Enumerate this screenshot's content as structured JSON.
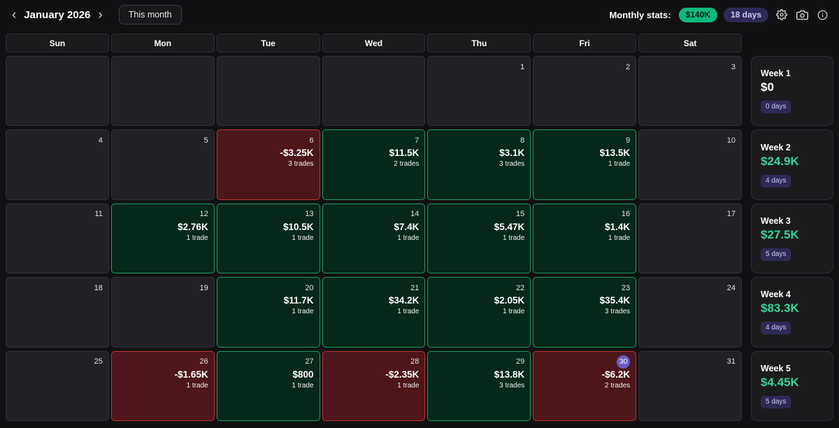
{
  "topbar": {
    "prev_icon": "‹",
    "next_icon": "›",
    "month_title": "January 2026",
    "this_month_label": "This month",
    "monthly_stats_label": "Monthly stats:",
    "monthly_pnl": "$140K",
    "monthly_days": "18 days"
  },
  "icons": {
    "prev": "chevron-left",
    "next": "chevron-right",
    "settings": "gear",
    "screenshot": "camera",
    "info": "info-circle"
  },
  "colors": {
    "win_bg": "#06281a",
    "win_border": "#1e9e5f",
    "loss_bg": "#4c161b",
    "loss_border": "#c23131",
    "positive_text": "#36d39b",
    "monthly_pnl_pill": "#10b981",
    "days_badge_bg": "#2e2a57",
    "today_badge": "#685bc7"
  },
  "calendar": {
    "weekday_headers": [
      "Sun",
      "Mon",
      "Tue",
      "Wed",
      "Thu",
      "Fri",
      "Sat"
    ],
    "days": [
      {
        "date": "",
        "state": "none"
      },
      {
        "date": "",
        "state": "none"
      },
      {
        "date": "",
        "state": "none"
      },
      {
        "date": "",
        "state": "none"
      },
      {
        "date": "1",
        "state": "none"
      },
      {
        "date": "2",
        "state": "none"
      },
      {
        "date": "3",
        "state": "none"
      },
      {
        "date": "4",
        "state": "none"
      },
      {
        "date": "5",
        "state": "none"
      },
      {
        "date": "6",
        "state": "loss",
        "pnl": "-$3.25K",
        "trades": "3 trades"
      },
      {
        "date": "7",
        "state": "win",
        "pnl": "$11.5K",
        "trades": "2 trades"
      },
      {
        "date": "8",
        "state": "win",
        "pnl": "$3.1K",
        "trades": "3 trades"
      },
      {
        "date": "9",
        "state": "win",
        "pnl": "$13.5K",
        "trades": "1 trade"
      },
      {
        "date": "10",
        "state": "none"
      },
      {
        "date": "11",
        "state": "none"
      },
      {
        "date": "12",
        "state": "win",
        "pnl": "$2.76K",
        "trades": "1 trade"
      },
      {
        "date": "13",
        "state": "win",
        "pnl": "$10.5K",
        "trades": "1 trade"
      },
      {
        "date": "14",
        "state": "win",
        "pnl": "$7.4K",
        "trades": "1 trade"
      },
      {
        "date": "15",
        "state": "win",
        "pnl": "$5.47K",
        "trades": "1 trade"
      },
      {
        "date": "16",
        "state": "win",
        "pnl": "$1.4K",
        "trades": "1 trade"
      },
      {
        "date": "17",
        "state": "none"
      },
      {
        "date": "18",
        "state": "none"
      },
      {
        "date": "19",
        "state": "none"
      },
      {
        "date": "20",
        "state": "win",
        "pnl": "$11.7K",
        "trades": "1 trade"
      },
      {
        "date": "21",
        "state": "win",
        "pnl": "$34.2K",
        "trades": "1 trade"
      },
      {
        "date": "22",
        "state": "win",
        "pnl": "$2.05K",
        "trades": "1 trade"
      },
      {
        "date": "23",
        "state": "win",
        "pnl": "$35.4K",
        "trades": "3 trades"
      },
      {
        "date": "24",
        "state": "none"
      },
      {
        "date": "25",
        "state": "none"
      },
      {
        "date": "26",
        "state": "loss",
        "pnl": "-$1.65K",
        "trades": "1 trade"
      },
      {
        "date": "27",
        "state": "win",
        "pnl": "$800",
        "trades": "1 trade"
      },
      {
        "date": "28",
        "state": "loss",
        "pnl": "-$2.35K",
        "trades": "1 trade"
      },
      {
        "date": "29",
        "state": "win",
        "pnl": "$13.8K",
        "trades": "3 trades"
      },
      {
        "date": "30",
        "state": "loss",
        "pnl": "-$6.2K",
        "trades": "2 trades",
        "today": true
      },
      {
        "date": "31",
        "state": "none"
      }
    ]
  },
  "weeks": [
    {
      "label": "Week 1",
      "value": "$0",
      "days": "0 days",
      "tone": "neutral"
    },
    {
      "label": "Week 2",
      "value": "$24.9K",
      "days": "4 days",
      "tone": "positive"
    },
    {
      "label": "Week 3",
      "value": "$27.5K",
      "days": "5 days",
      "tone": "positive"
    },
    {
      "label": "Week 4",
      "value": "$83.3K",
      "days": "4 days",
      "tone": "positive"
    },
    {
      "label": "Week 5",
      "value": "$4.45K",
      "days": "5 days",
      "tone": "positive"
    }
  ]
}
